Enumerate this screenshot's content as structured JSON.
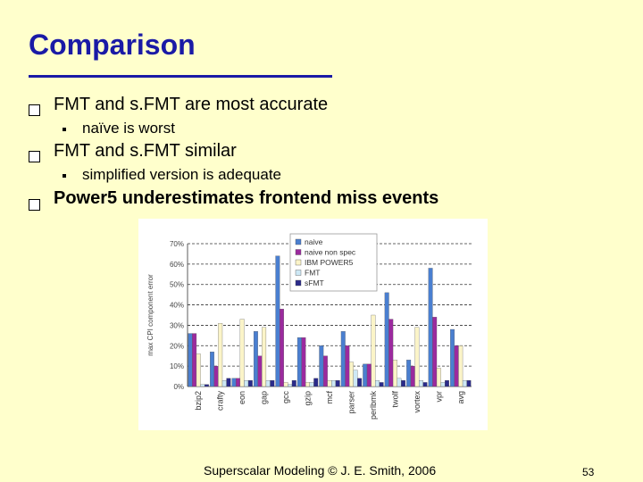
{
  "slide": {
    "title": "Comparison",
    "bullets": [
      {
        "text": "FMT and s.FMT are most accurate",
        "sub": "naïve is worst"
      },
      {
        "text": "FMT and s.FMT similar",
        "sub": "simplified version is adequate"
      },
      {
        "text": "Power5 underestimates frontend miss events",
        "sub": ""
      }
    ],
    "footer": "Superscalar Modeling © J. E. Smith, 2006",
    "page_number": "53"
  },
  "chart_data": {
    "type": "bar",
    "ylabel": "max CPI component error",
    "ylim": [
      0,
      70
    ],
    "yticks": [
      "0%",
      "10%",
      "20%",
      "30%",
      "40%",
      "50%",
      "60%",
      "70%"
    ],
    "grid": true,
    "legend_placement": "top-center",
    "categories": [
      "bzip2",
      "crafty",
      "eon",
      "gap",
      "gcc",
      "gzip",
      "mcf",
      "parser",
      "perlbmk",
      "twolf",
      "vortex",
      "vpr",
      "avg"
    ],
    "series": [
      {
        "name": "naive",
        "color": "#4a7fd0",
        "values": [
          26,
          17,
          4,
          27,
          64,
          24,
          20,
          27,
          11,
          46,
          13,
          58,
          28
        ]
      },
      {
        "name": "naive non spec",
        "color": "#9b2a9e",
        "values": [
          26,
          10,
          4,
          15,
          38,
          24,
          15,
          20,
          11,
          33,
          10,
          34,
          20
        ]
      },
      {
        "name": "IBM POWER5",
        "color": "#fbf4c8",
        "values": [
          16,
          31,
          33,
          29,
          2,
          2,
          3,
          12,
          35,
          13,
          29,
          9,
          20
        ]
      },
      {
        "name": "FMT",
        "color": "#cde8f5",
        "values": [
          1,
          3,
          3,
          3,
          1,
          2,
          3,
          8,
          3,
          4,
          3,
          2,
          3
        ]
      },
      {
        "name": "sFMT",
        "color": "#2a2a8a",
        "values": [
          1,
          4,
          3,
          3,
          3,
          4,
          3,
          4,
          2,
          3,
          2,
          3,
          3
        ]
      }
    ]
  }
}
